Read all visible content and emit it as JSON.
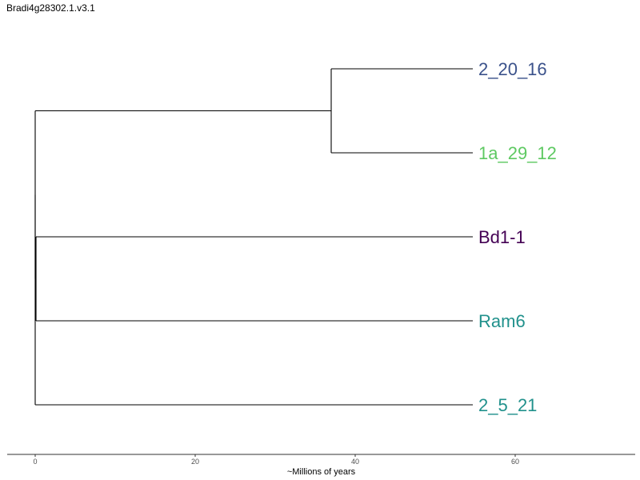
{
  "title": "Bradi4g28302.1.v3.1",
  "axis": {
    "label": "~Millions of years",
    "range": [
      -3.5,
      75
    ],
    "ticks": [
      0,
      20,
      40,
      60
    ]
  },
  "colors": {
    "2_20_16": "#3b528b",
    "1a_29_12": "#5ec962",
    "Bd1-1": "#440154",
    "Ram6": "#21918c",
    "2_5_21": "#21918c",
    "branch": "#000000"
  },
  "tree": {
    "leaf_x": 54.7,
    "tips": [
      "2_20_16",
      "1a_29_12",
      "Bd1-1",
      "Ram6",
      "2_5_21"
    ],
    "nodes": [
      {
        "id": "root",
        "x": 0,
        "children": [
          "n1",
          "n2"
        ]
      },
      {
        "id": "n1",
        "x": 0,
        "children": [
          "n3",
          "n4"
        ]
      },
      {
        "id": "n3",
        "x": 37,
        "children": [
          "2_20_16",
          "1a_29_12"
        ]
      },
      {
        "id": "n4",
        "x": 0.1,
        "children": [
          "Bd1-1",
          "Ram6"
        ]
      },
      {
        "id": "n2",
        "x": 0,
        "children": [
          "2_5_21"
        ]
      }
    ]
  }
}
